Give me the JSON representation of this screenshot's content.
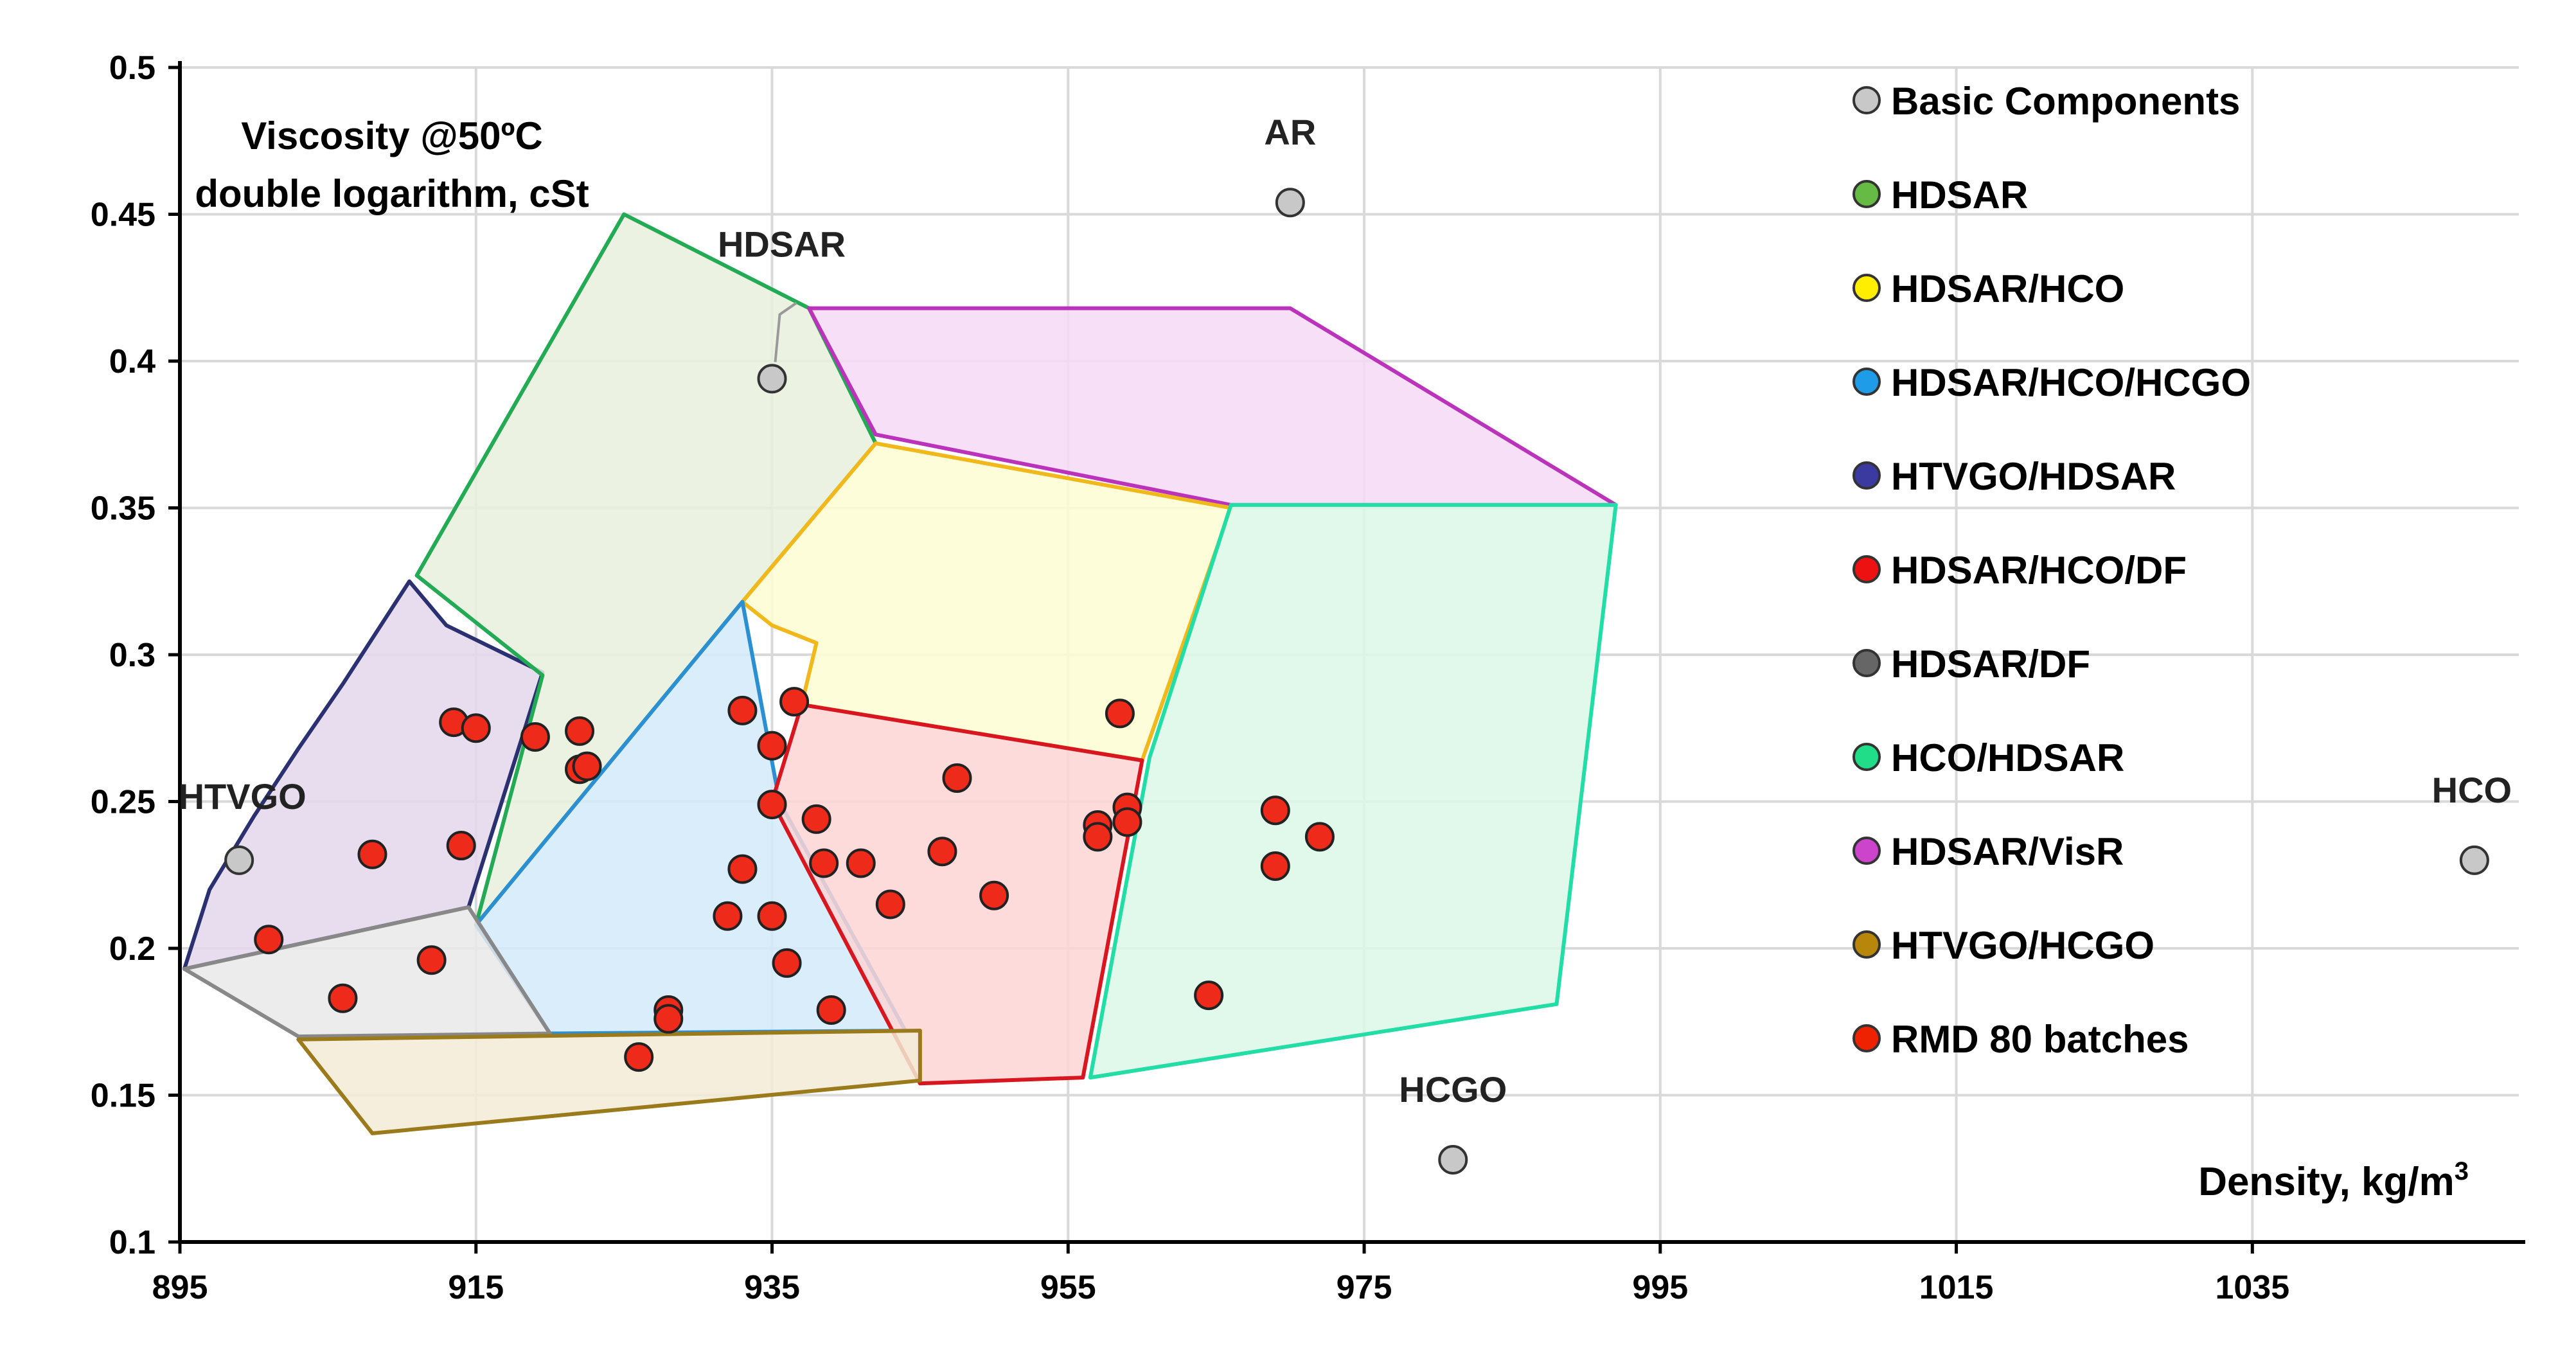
{
  "chart_data": {
    "type": "scatter",
    "title_lines": [
      "Viscosity @50ºC",
      "double logarithm, cSt"
    ],
    "xlabel": "Density, kg/m",
    "xlabel_sup": "3",
    "xlim": [
      895,
      1053
    ],
    "ylim": [
      0.1,
      0.5
    ],
    "x_ticks": [
      895,
      915,
      935,
      955,
      975,
      995,
      1015,
      1035
    ],
    "y_ticks": [
      0.1,
      0.15,
      0.2,
      0.25,
      0.3,
      0.35,
      0.4,
      0.45,
      0.5
    ],
    "y_tick_labels": [
      "0.1",
      "0.15",
      "0.2",
      "0.25",
      "0.3",
      "0.35",
      "0.4",
      "0.45",
      "0.5"
    ],
    "grid": true,
    "legend_position": "top-right",
    "legend": [
      {
        "label": "Basic Components",
        "color": "#c8c8c8"
      },
      {
        "label": "HDSAR",
        "color": "#66bb44"
      },
      {
        "label": "HDSAR/HCO",
        "color": "#ffee00"
      },
      {
        "label": "HDSAR/HCO/HCGO",
        "color": "#1f9ce8"
      },
      {
        "label": "HTVGO/HDSAR",
        "color": "#3a3aa0"
      },
      {
        "label": "HDSAR/HCO/DF",
        "color": "#ee1111"
      },
      {
        "label": "HDSAR/DF",
        "color": "#666666"
      },
      {
        "label": "HCO/HDSAR",
        "color": "#22dd88"
      },
      {
        "label": "HDSAR/VisR",
        "color": "#cc44cc"
      },
      {
        "label": "HTVGO/HCGO",
        "color": "#b8860b"
      },
      {
        "label": "RMD 80 batches",
        "color": "#ee2200"
      }
    ],
    "regions": [
      {
        "name": "HTVGO/HDSAR",
        "fill": "#e3d7ec",
        "stroke": "#2a3070",
        "points": [
          [
            895.3,
            0.193
          ],
          [
            897,
            0.22
          ],
          [
            900,
            0.245
          ],
          [
            903,
            0.268
          ],
          [
            906,
            0.29
          ],
          [
            910.5,
            0.325
          ],
          [
            913,
            0.31
          ],
          [
            919.5,
            0.294
          ],
          [
            914.5,
            0.214
          ]
        ]
      },
      {
        "name": "HDSAR",
        "fill": "#e9f0dd",
        "stroke": "#22aa55",
        "points": [
          [
            911,
            0.327
          ],
          [
            925,
            0.45
          ],
          [
            937.5,
            0.418
          ],
          [
            942,
            0.372
          ],
          [
            933,
            0.318
          ],
          [
            915,
            0.208
          ],
          [
            919.5,
            0.293
          ]
        ]
      },
      {
        "name": "HDSAR/VisR",
        "fill": "#f6d9f7",
        "stroke": "#bb33bb",
        "points": [
          [
            937.5,
            0.418
          ],
          [
            970,
            0.418
          ],
          [
            992,
            0.351
          ],
          [
            966,
            0.351
          ],
          [
            942,
            0.375
          ]
        ]
      },
      {
        "name": "HDSAR/HCO",
        "fill": "#fefdd3",
        "stroke": "#f1b81c",
        "points": [
          [
            942,
            0.372
          ],
          [
            966,
            0.35
          ],
          [
            960,
            0.264
          ],
          [
            937,
            0.283
          ],
          [
            938,
            0.304
          ],
          [
            935,
            0.31
          ],
          [
            933,
            0.318
          ]
        ]
      },
      {
        "name": "HDSAR/HCO/HCGO",
        "fill": "#d3eaf9",
        "stroke": "#2b8fd1",
        "points": [
          [
            933,
            0.318
          ],
          [
            935.5,
            0.25
          ],
          [
            944,
            0.172
          ],
          [
            920,
            0.171
          ],
          [
            915,
            0.208
          ]
        ]
      },
      {
        "name": "HDSAR/HCO/DF",
        "fill": "#fdd5d5",
        "stroke": "#d8161f",
        "points": [
          [
            937,
            0.283
          ],
          [
            960,
            0.264
          ],
          [
            956,
            0.156
          ],
          [
            945,
            0.154
          ],
          [
            935,
            0.25
          ]
        ]
      },
      {
        "name": "HCO/HDSAR",
        "fill": "#dcf8e8",
        "stroke": "#22dda6",
        "points": [
          [
            966,
            0.351
          ],
          [
            992,
            0.351
          ],
          [
            988,
            0.181
          ],
          [
            956.5,
            0.156
          ],
          [
            960.5,
            0.265
          ]
        ]
      },
      {
        "name": "HDSAR/DF",
        "fill": "#e9e9e9",
        "stroke": "#888888",
        "points": [
          [
            895.3,
            0.193
          ],
          [
            914.5,
            0.214
          ],
          [
            920,
            0.171
          ],
          [
            903,
            0.17
          ]
        ]
      },
      {
        "name": "HTVGO/HCGO",
        "fill": "#f3ebd6",
        "stroke": "#9a7a1a",
        "points": [
          [
            903,
            0.169
          ],
          [
            945,
            0.172
          ],
          [
            945,
            0.155
          ],
          [
            908,
            0.137
          ]
        ]
      }
    ],
    "basic_components": [
      {
        "label": "HTVGO",
        "x": 899,
        "y": 0.23
      },
      {
        "label": "HDSAR",
        "x": 935,
        "y": 0.394
      },
      {
        "label": "AR",
        "x": 970,
        "y": 0.454
      },
      {
        "label": "HCGO",
        "x": 981,
        "y": 0.128
      },
      {
        "label": "HCO",
        "x": 1050,
        "y": 0.23
      }
    ],
    "batches": [
      {
        "x": 901,
        "y": 0.203
      },
      {
        "x": 906,
        "y": 0.183
      },
      {
        "x": 908,
        "y": 0.232
      },
      {
        "x": 912,
        "y": 0.196
      },
      {
        "x": 913.5,
        "y": 0.277
      },
      {
        "x": 914,
        "y": 0.235
      },
      {
        "x": 915,
        "y": 0.275
      },
      {
        "x": 919,
        "y": 0.272
      },
      {
        "x": 922,
        "y": 0.274
      },
      {
        "x": 922,
        "y": 0.261
      },
      {
        "x": 922.5,
        "y": 0.262
      },
      {
        "x": 926,
        "y": 0.163
      },
      {
        "x": 928,
        "y": 0.179
      },
      {
        "x": 928,
        "y": 0.176
      },
      {
        "x": 932,
        "y": 0.211
      },
      {
        "x": 933,
        "y": 0.281
      },
      {
        "x": 933,
        "y": 0.227
      },
      {
        "x": 935,
        "y": 0.269
      },
      {
        "x": 935,
        "y": 0.249
      },
      {
        "x": 935,
        "y": 0.211
      },
      {
        "x": 936,
        "y": 0.195
      },
      {
        "x": 936.5,
        "y": 0.284
      },
      {
        "x": 938,
        "y": 0.244
      },
      {
        "x": 938.5,
        "y": 0.229
      },
      {
        "x": 939,
        "y": 0.179
      },
      {
        "x": 941,
        "y": 0.229
      },
      {
        "x": 943,
        "y": 0.215
      },
      {
        "x": 946.5,
        "y": 0.233
      },
      {
        "x": 947.5,
        "y": 0.258
      },
      {
        "x": 950,
        "y": 0.218
      },
      {
        "x": 957,
        "y": 0.242
      },
      {
        "x": 957,
        "y": 0.238
      },
      {
        "x": 959,
        "y": 0.248
      },
      {
        "x": 959,
        "y": 0.243
      },
      {
        "x": 958.5,
        "y": 0.28
      },
      {
        "x": 964.5,
        "y": 0.184
      },
      {
        "x": 969,
        "y": 0.247
      },
      {
        "x": 969,
        "y": 0.228
      },
      {
        "x": 972,
        "y": 0.238
      }
    ]
  }
}
